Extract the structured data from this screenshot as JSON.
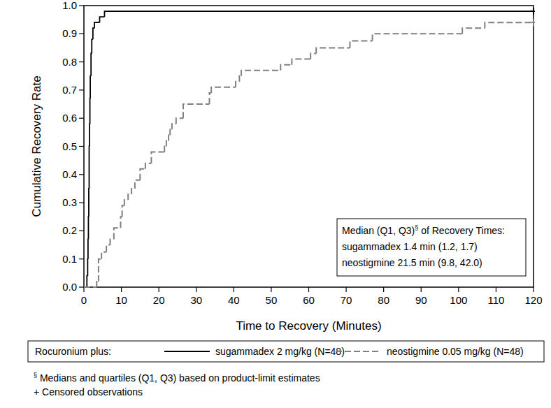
{
  "chart_data": {
    "type": "step",
    "x_label": "Time to Recovery (Minutes)",
    "y_label": "Cumulative Recovery Rate",
    "xlim": [
      0,
      120
    ],
    "ylim": [
      0,
      1
    ],
    "xticks": [
      0,
      10,
      20,
      30,
      40,
      50,
      60,
      70,
      80,
      90,
      100,
      110,
      120
    ],
    "yticks": [
      {
        "value": 0,
        "label": "0.0"
      },
      {
        "value": 0.1,
        "label": "0.1"
      },
      {
        "value": 0.2,
        "label": "0.2"
      },
      {
        "value": 0.3,
        "label": "0.3"
      },
      {
        "value": 0.4,
        "label": "0.4"
      },
      {
        "value": 0.5,
        "label": "0.5"
      },
      {
        "value": 0.6,
        "label": "0.6"
      },
      {
        "value": 0.7,
        "label": "0.7"
      },
      {
        "value": 0.8,
        "label": "0.8"
      },
      {
        "value": 0.9,
        "label": "0.9"
      },
      {
        "value": 1,
        "label": "1.0"
      }
    ],
    "legend": "bottom",
    "legend_title": "Rocuronium plus:",
    "series": [
      {
        "name": "sugammadex 2 mg/kg (N=48)",
        "color": "#000000",
        "line_style": "solid",
        "marker": "+",
        "x": [
          0,
          0.8,
          1.0,
          1.1,
          1.2,
          1.3,
          1.4,
          1.5,
          1.6,
          1.7,
          1.9,
          2.1,
          2.4,
          2.8,
          4.2,
          5.5,
          120
        ],
        "values": [
          0,
          0.04,
          0.1,
          0.17,
          0.25,
          0.35,
          0.5,
          0.58,
          0.67,
          0.75,
          0.83,
          0.88,
          0.92,
          0.94,
          0.96,
          0.98,
          0.98
        ],
        "censored_x": [
          120
        ],
        "censored_values": [
          0.98
        ]
      },
      {
        "name": "neostigmine 0.05 mg/kg (N=48)",
        "color": "#808080",
        "line_style": "dashed",
        "marker": "+",
        "x": [
          0,
          3.4,
          3.9,
          4.7,
          6.0,
          7.0,
          8.0,
          9.8,
          10.2,
          10.8,
          11.8,
          12.7,
          13.6,
          15.0,
          16.4,
          18.0,
          21.5,
          22.0,
          22.6,
          23.0,
          23.5,
          24.6,
          26.5,
          33.5,
          34.0,
          40.5,
          41.5,
          42.0,
          52.5,
          55.5,
          60.5,
          62.0,
          71.0,
          77.0,
          101.0,
          107.0,
          120
        ],
        "values": [
          0,
          0.02,
          0.1,
          0.125,
          0.15,
          0.17,
          0.21,
          0.25,
          0.29,
          0.31,
          0.33,
          0.35,
          0.38,
          0.42,
          0.44,
          0.48,
          0.5,
          0.52,
          0.54,
          0.56,
          0.58,
          0.6,
          0.65,
          0.69,
          0.71,
          0.73,
          0.75,
          0.77,
          0.79,
          0.81,
          0.83,
          0.85,
          0.875,
          0.9,
          0.92,
          0.94,
          0.94
        ],
        "censored_x": [
          120
        ],
        "censored_values": [
          0.94
        ]
      }
    ],
    "annotation": {
      "title": "Median (Q1, Q3)§ of Recovery Times:",
      "lines": [
        "sugammadex 1.4 min (1.2, 1.7)",
        "neostigmine 21.5 min (9.8, 42.0)"
      ]
    },
    "footnotes": [
      "§  Medians and quartiles (Q1, Q3) based on product-limit estimates",
      "+ Censored observations"
    ]
  }
}
